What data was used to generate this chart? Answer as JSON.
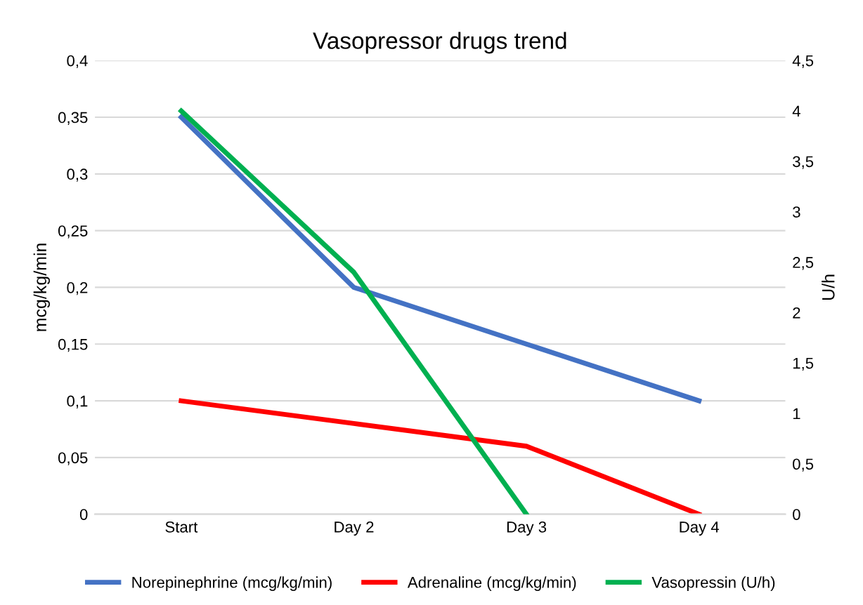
{
  "chart_data": {
    "type": "line",
    "title": "Vasopressor drugs trend",
    "ylabel": "mcg/kg/min",
    "y2label": "U/h",
    "categories": [
      "Start",
      "Day 2",
      "Day 3",
      "Day 4"
    ],
    "series": [
      {
        "name": "Norepinephrine (mcg/kg/min)",
        "color": "#4472c4",
        "values": [
          0.35,
          0.2,
          0.15,
          0.1
        ]
      },
      {
        "name": "Adrenaline (mcg/kg/min)",
        "color": "#ff0000",
        "values": [
          0.1,
          0.08,
          0.06,
          0
        ]
      },
      {
        "name": "Vasopressin (U/h)",
        "color": "#00b050",
        "axis": "y2",
        "values": [
          4,
          2.4,
          0,
          null
        ]
      }
    ],
    "ylim": [
      0,
      0.4
    ],
    "yticks": [
      0,
      {
        "value": 0.05,
        "label": "0,05"
      },
      {
        "value": 0.1,
        "label": "0,1"
      },
      {
        "value": 0.15,
        "label": "0,15"
      },
      {
        "value": 0.2,
        "label": "0,2"
      },
      {
        "value": 0.25,
        "label": "0,25"
      },
      {
        "value": 0.3,
        "label": "0,3"
      },
      {
        "value": 0.35,
        "label": "0,35"
      },
      {
        "value": 0.4,
        "label": "0,4"
      }
    ],
    "y2lim": [
      0,
      4.5
    ],
    "y2ticks": [
      0,
      {
        "value": 0.5,
        "label": "0,5"
      },
      1,
      {
        "value": 1.5,
        "label": "1,5"
      },
      2,
      {
        "value": 2.5,
        "label": "2,5"
      },
      3,
      {
        "value": 3.5,
        "label": "3,5"
      },
      4,
      {
        "value": 4.5,
        "label": "4,5"
      }
    ],
    "grid": "y",
    "legend": "bottom",
    "marker": "none",
    "line_style": "solid"
  }
}
